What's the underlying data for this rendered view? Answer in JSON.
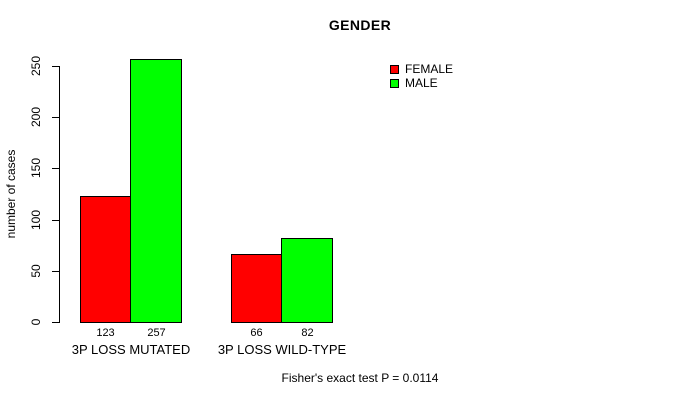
{
  "title": "GENDER",
  "footer": "Fisher's exact test P = 0.0114",
  "y_axis": {
    "label": "number of cases",
    "tick_labels": [
      "0",
      "50",
      "100",
      "150",
      "200",
      "250"
    ]
  },
  "legend": {
    "items": [
      {
        "label": "FEMALE",
        "color": "#ff0000"
      },
      {
        "label": "MALE",
        "color": "#00ff00"
      }
    ]
  },
  "colors": {
    "background": "#ffffff",
    "bar_border": "#000000",
    "text": "#000000",
    "female": "#ff0000",
    "male": "#00ff00"
  },
  "chart_data": {
    "type": "bar",
    "title": "GENDER",
    "xlabel": "",
    "ylabel": "number of cases",
    "categories": [
      "3P LOSS MUTATED",
      "3P LOSS WILD-TYPE"
    ],
    "series": [
      {
        "name": "FEMALE",
        "color": "#ff0000",
        "values": [
          123,
          66
        ]
      },
      {
        "name": "MALE",
        "color": "#00ff00",
        "values": [
          257,
          82
        ]
      }
    ],
    "value_labels": [
      [
        "123",
        "66"
      ],
      [
        "257",
        "82"
      ]
    ],
    "ylim": [
      0,
      250
    ],
    "yticks": [
      0,
      50,
      100,
      150,
      200,
      250
    ],
    "grid": false,
    "legend_position": "upper-right",
    "annotation": "Fisher's exact test P = 0.0114"
  }
}
